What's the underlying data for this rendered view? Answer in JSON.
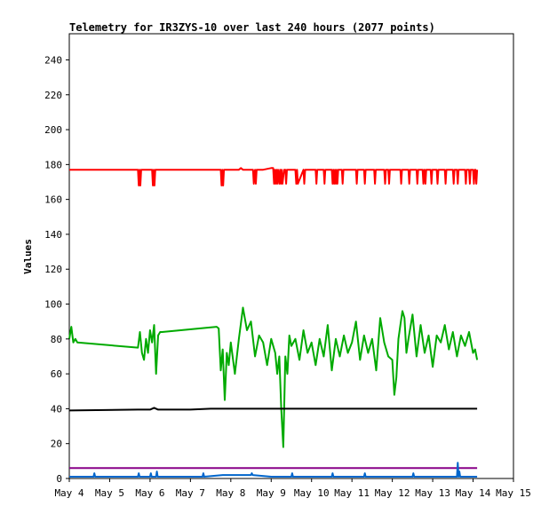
{
  "chart_data": {
    "type": "line",
    "title": "Telemetry for IR3ZYS-10 over last 240 hours (2077 points)",
    "xlabel": "",
    "ylabel": "Values",
    "xlim": [
      "May 4",
      "May 15"
    ],
    "ylim": [
      0,
      255
    ],
    "x_ticks": [
      "May 4",
      "May 5",
      "May 6",
      "May 7",
      "May 8",
      "May 9",
      "May 10",
      "May 11",
      "May 12",
      "May 13",
      "May 14",
      "May 15"
    ],
    "y_ticks": [
      0,
      20,
      40,
      60,
      80,
      100,
      120,
      140,
      160,
      180,
      200,
      220,
      240
    ],
    "grid": false,
    "x_unit": "days (May 4 = 4)",
    "series": [
      {
        "color": "#ff0000",
        "x": [
          4.0,
          5.7,
          5.72,
          5.74,
          5.76,
          5.78,
          5.8,
          6.05,
          6.07,
          6.09,
          6.11,
          6.13,
          6.15,
          7.75,
          7.77,
          7.79,
          7.81,
          7.83,
          7.85,
          8.2,
          8.25,
          8.3,
          8.55,
          8.57,
          8.6,
          8.62,
          8.64,
          8.67,
          8.72,
          8.8,
          9.0,
          9.05,
          9.07,
          9.09,
          9.11,
          9.13,
          9.15,
          9.17,
          9.2,
          9.22,
          9.24,
          9.26,
          9.28,
          9.32,
          9.35,
          9.37,
          9.39,
          9.6,
          9.62,
          9.64,
          9.66,
          9.8,
          9.82,
          9.84,
          10.1,
          10.12,
          10.14,
          10.3,
          10.32,
          10.34,
          10.5,
          10.52,
          10.54,
          10.56,
          10.58,
          10.6,
          10.62,
          10.64,
          10.66,
          10.68,
          10.75,
          10.77,
          10.79,
          11.1,
          11.12,
          11.14,
          11.3,
          11.32,
          11.34,
          11.55,
          11.57,
          11.59,
          11.8,
          11.82,
          11.84,
          11.9,
          11.92,
          11.94,
          12.2,
          12.22,
          12.24,
          12.4,
          12.42,
          12.44,
          12.6,
          12.62,
          12.64,
          12.75,
          12.77,
          12.79,
          12.8,
          12.82,
          12.84,
          12.95,
          12.97,
          12.99,
          13.0,
          13.1,
          13.12,
          13.14,
          13.3,
          13.32,
          13.34,
          13.5,
          13.52,
          13.54,
          13.6,
          13.62,
          13.64,
          13.8,
          13.82,
          13.84,
          13.9,
          13.92,
          13.94,
          14.0,
          14.02,
          14.04,
          14.06,
          14.08,
          14.1
        ],
        "y": [
          177,
          177,
          168,
          177,
          168,
          177,
          177,
          177,
          168,
          177,
          168,
          177,
          177,
          177,
          168,
          177,
          168,
          177,
          177,
          177,
          178,
          177,
          177,
          169,
          177,
          169,
          177,
          177,
          177,
          177,
          178,
          178,
          169,
          177,
          169,
          177,
          169,
          177,
          169,
          177,
          169,
          177,
          169,
          177,
          177,
          169,
          177,
          177,
          169,
          177,
          169,
          177,
          169,
          177,
          177,
          169,
          177,
          177,
          169,
          177,
          177,
          169,
          177,
          169,
          177,
          169,
          177,
          169,
          177,
          177,
          177,
          169,
          177,
          177,
          169,
          177,
          177,
          169,
          177,
          177,
          169,
          177,
          177,
          169,
          177,
          177,
          169,
          177,
          177,
          169,
          177,
          177,
          169,
          177,
          177,
          169,
          177,
          177,
          169,
          177,
          177,
          169,
          177,
          177,
          169,
          177,
          177,
          177,
          169,
          177,
          177,
          169,
          177,
          177,
          169,
          177,
          177,
          169,
          177,
          177,
          169,
          177,
          177,
          169,
          177,
          177,
          169,
          177,
          177,
          169,
          177
        ]
      },
      {
        "color": "#00aa00",
        "x": [
          4.0,
          4.05,
          4.1,
          4.15,
          4.2,
          5.7,
          5.75,
          5.8,
          5.85,
          5.9,
          5.95,
          6.0,
          6.05,
          6.1,
          6.15,
          6.2,
          6.25,
          6.3,
          7.65,
          7.7,
          7.75,
          7.8,
          7.85,
          7.9,
          7.95,
          8.0,
          8.1,
          8.2,
          8.3,
          8.4,
          8.5,
          8.6,
          8.7,
          8.8,
          8.9,
          9.0,
          9.1,
          9.15,
          9.2,
          9.25,
          9.3,
          9.35,
          9.4,
          9.45,
          9.5,
          9.6,
          9.7,
          9.8,
          9.9,
          10.0,
          10.1,
          10.2,
          10.3,
          10.4,
          10.5,
          10.6,
          10.7,
          10.8,
          10.9,
          11.0,
          11.1,
          11.2,
          11.3,
          11.4,
          11.5,
          11.6,
          11.7,
          11.8,
          11.9,
          12.0,
          12.05,
          12.1,
          12.15,
          12.2,
          12.25,
          12.3,
          12.35,
          12.4,
          12.5,
          12.6,
          12.7,
          12.8,
          12.9,
          13.0,
          13.1,
          13.2,
          13.3,
          13.4,
          13.5,
          13.6,
          13.7,
          13.8,
          13.9,
          14.0,
          14.05,
          14.1
        ],
        "y": [
          80,
          87,
          78,
          80,
          78,
          75,
          84,
          72,
          68,
          80,
          72,
          85,
          78,
          88,
          60,
          82,
          84,
          84,
          87,
          86,
          62,
          74,
          45,
          72,
          65,
          78,
          60,
          80,
          98,
          85,
          90,
          70,
          82,
          78,
          65,
          80,
          72,
          60,
          70,
          40,
          18,
          70,
          60,
          82,
          76,
          80,
          68,
          85,
          72,
          78,
          65,
          80,
          70,
          88,
          62,
          80,
          70,
          82,
          72,
          78,
          90,
          68,
          82,
          72,
          80,
          62,
          92,
          78,
          70,
          68,
          48,
          58,
          80,
          88,
          96,
          92,
          72,
          80,
          94,
          70,
          88,
          72,
          82,
          64,
          82,
          78,
          88,
          74,
          84,
          70,
          82,
          76,
          84,
          72,
          74,
          68
        ]
      },
      {
        "color": "#000000",
        "x": [
          4.0,
          5.7,
          6.0,
          6.1,
          6.2,
          7.0,
          7.5,
          7.8,
          8.0,
          9.0,
          10.0,
          11.0,
          12.0,
          13.0,
          14.1
        ],
        "y": [
          39,
          39.5,
          39.5,
          40.5,
          39.5,
          39.5,
          40,
          40,
          40,
          40,
          40,
          40,
          40,
          40,
          40
        ]
      },
      {
        "color": "#880088",
        "x": [
          4.0,
          14.1
        ],
        "y": [
          6,
          6
        ]
      },
      {
        "color": "#0066cc",
        "x": [
          4.0,
          4.6,
          4.62,
          4.64,
          5.7,
          5.72,
          5.74,
          6.0,
          6.02,
          6.04,
          6.15,
          6.17,
          6.19,
          7.0,
          7.3,
          7.32,
          7.34,
          7.8,
          8.0,
          8.5,
          8.52,
          8.54,
          9.0,
          9.5,
          9.52,
          9.54,
          10.0,
          10.5,
          10.52,
          10.54,
          11.0,
          11.3,
          11.32,
          11.34,
          12.0,
          12.5,
          12.52,
          12.54,
          13.0,
          13.6,
          13.62,
          13.64,
          13.66,
          13.68,
          13.7,
          14.0,
          14.1
        ],
        "y": [
          1,
          1,
          3,
          1,
          1,
          3,
          1,
          1,
          3,
          1,
          1,
          4,
          1,
          1,
          1,
          3,
          1,
          2,
          2,
          2,
          3,
          2,
          1,
          1,
          3,
          1,
          1,
          1,
          3,
          1,
          1,
          1,
          3,
          1,
          1,
          1,
          3,
          1,
          1,
          1,
          9,
          1,
          4,
          1,
          1,
          1,
          1
        ]
      }
    ]
  }
}
